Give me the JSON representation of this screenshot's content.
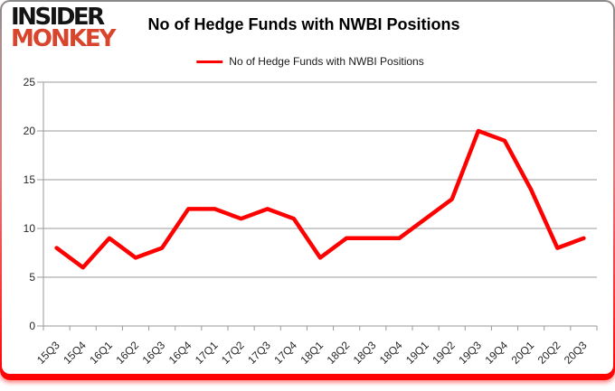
{
  "logo": {
    "line1": "INSIDER",
    "line2": "MONKEY",
    "line1_color": "#141414",
    "line2_color": "#d9452c"
  },
  "header": {
    "title": "No of Hedge Funds with NWBI Positions"
  },
  "legend": {
    "label": "No of Hedge Funds with NWBI Positions",
    "color": "#ff0000"
  },
  "chart_data": {
    "type": "line",
    "title": "No of Hedge Funds with NWBI Positions",
    "categories": [
      "15Q3",
      "15Q4",
      "16Q1",
      "16Q2",
      "16Q3",
      "16Q4",
      "17Q1",
      "17Q2",
      "17Q3",
      "17Q4",
      "18Q1",
      "18Q2",
      "18Q3",
      "18Q4",
      "19Q1",
      "19Q2",
      "19Q3",
      "19Q4",
      "20Q1",
      "20Q2",
      "20Q3"
    ],
    "series": [
      {
        "name": "No of Hedge Funds with NWBI Positions",
        "color": "#ff0000",
        "values": [
          8,
          6,
          9,
          7,
          8,
          12,
          12,
          11,
          12,
          11,
          7,
          9,
          9,
          9,
          11,
          13,
          20,
          19,
          14,
          8,
          9
        ]
      }
    ],
    "xlabel": "",
    "ylabel": "",
    "ylim": [
      0,
      25
    ],
    "yticks": [
      0,
      5,
      10,
      15,
      20,
      25
    ],
    "grid": true,
    "legend_position": "top"
  },
  "style": {
    "grid_color": "#9a9a9a",
    "axis_color": "#9a9a9a",
    "tick_label_color": "#262626",
    "series_line_width": 4.5
  }
}
